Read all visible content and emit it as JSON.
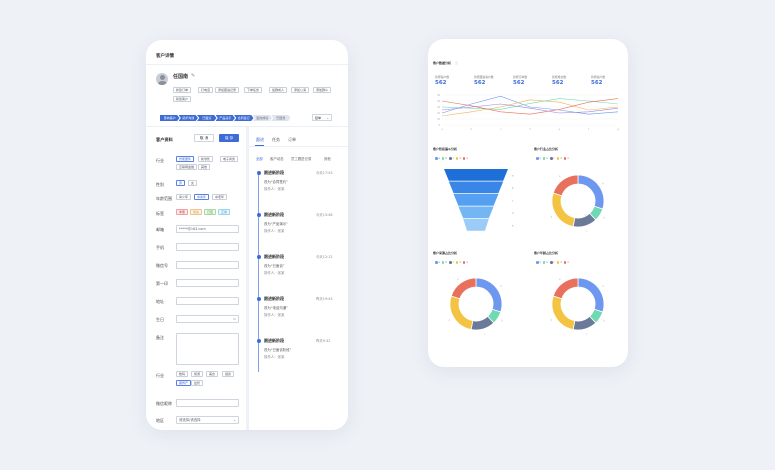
{
  "left": {
    "title": "客户详情",
    "customer": {
      "name": "任国南",
      "edit_icon": "edit-icon"
    },
    "action_tags": [
      "新建订单",
      "打电话",
      "添加跟进记录",
      "下单任务",
      "加群成人",
      "添加公海",
      "添加群众",
      "新建客户"
    ],
    "stages": [
      "意向客户",
      "初步沟通",
      "已面谈",
      "产品演示",
      "合同签订",
      "签约成功",
      "已回款"
    ],
    "stage_active_count": 5,
    "stage_select": "结单",
    "section_title": "客户资料",
    "cancel_label": "取 消",
    "save_label": "保 存",
    "fields": {
      "industry_label": "行业",
      "industry_tags": [
        "智能硬件",
        "新零售",
        "电子商务",
        "互联网金融",
        "其他"
      ],
      "gender_label": "性别",
      "gender_opts": [
        "男",
        "女"
      ],
      "age_label": "年龄范围",
      "age_opts": [
        "青少年",
        "中青年",
        "中老年"
      ],
      "tags_label": "标签",
      "tag_values": [
        "重要",
        "优先",
        "已回",
        "正常"
      ],
      "email_label": "邮箱",
      "email_value": "*****@163.com",
      "phone_label": "手机",
      "wechat_label": "微信号",
      "company_label": "第一印",
      "address_label": "地址",
      "birthday_label": "生日",
      "note_label": "备注",
      "hobby_label": "行业",
      "hobby_tags": [
        "数码",
        "旅游",
        "美食",
        "健身",
        "服饰产",
        "益智",
        "运动爱好",
        "其它"
      ],
      "id_label": "微信昵称",
      "region_label": "地区",
      "region_value": "请选择/请选择"
    },
    "tabs": [
      "跟进",
      "任务",
      "订单"
    ],
    "subtabs": [
      "全部",
      "客户动态",
      "员工跟进记录",
      "其他"
    ],
    "timeline": [
      {
        "title": "跟进新阶段",
        "time": "今天17:43",
        "text": "改为“合同签约”",
        "op": "操作人：张某"
      },
      {
        "title": "跟进新阶段",
        "time": "今天13:46",
        "text": "改为“产品演示”",
        "op": "操作人：张某"
      },
      {
        "title": "跟进新阶段",
        "time": "今天12:12",
        "text": "改为“已面谈”",
        "op": "操作人：张某"
      },
      {
        "title": "跟进新阶段",
        "time": "昨天19:43",
        "text": "改为“电话沟通”",
        "op": "操作人：张某"
      },
      {
        "title": "跟进新阶段",
        "time": "昨天9:32",
        "text": "改为“已面谈阶段”",
        "op": "操作人：张某"
      }
    ]
  },
  "right": {
    "title": "客户数据分析",
    "kpis": [
      {
        "label": "新增客户数",
        "value": "562"
      },
      {
        "label": "新增跟进客户数",
        "value": "562"
      },
      {
        "label": "新增订单数",
        "value": "562"
      },
      {
        "label": "新增成交数",
        "value": "562"
      },
      {
        "label": "新增客户数",
        "value": "562"
      }
    ],
    "panel_titles": [
      "客户阶段漏斗分析",
      "客户行业占比分析",
      "客户来源占比分析",
      "客户年龄占比分析"
    ],
    "legend_items": [
      "a",
      "b",
      "c",
      "d",
      "e"
    ]
  },
  "colors": {
    "accent": "#3e6bd6",
    "donut": [
      "#6e97f0",
      "#6fd9b3",
      "#6c7a99",
      "#f5c342",
      "#e8705c"
    ],
    "funnel": [
      "#1f6fd8",
      "#3a86e6",
      "#55a0f0",
      "#74b5f4",
      "#9bcbf7"
    ],
    "lines": [
      "#6e97f0",
      "#f5b253",
      "#6fd9b3",
      "#e8705c",
      "#9b85e0"
    ]
  },
  "chart_data": [
    {
      "type": "line",
      "title": "",
      "x": [
        "a",
        "b",
        "c",
        "d",
        "e",
        "f",
        "g"
      ],
      "series": [
        {
          "values": [
            20,
            35,
            48,
            30,
            25,
            18,
            22
          ]
        },
        {
          "values": [
            15,
            22,
            30,
            42,
            38,
            25,
            30
          ]
        },
        {
          "values": [
            30,
            28,
            26,
            36,
            44,
            40,
            35
          ]
        },
        {
          "values": [
            40,
            32,
            22,
            18,
            26,
            38,
            44
          ]
        },
        {
          "values": [
            25,
            30,
            35,
            28,
            20,
            22,
            28
          ]
        }
      ],
      "ylim": [
        0,
        50
      ]
    },
    {
      "type": "bar",
      "title": "客户阶段漏斗分析",
      "categories": [
        "a",
        "b",
        "c",
        "d",
        "e"
      ],
      "values": [
        100,
        85,
        70,
        55,
        40
      ]
    },
    {
      "type": "pie",
      "title": "客户行业占比分析",
      "values": [
        30,
        8,
        15,
        27,
        20
      ]
    },
    {
      "type": "pie",
      "title": "客户来源占比分析",
      "values": [
        30,
        8,
        15,
        27,
        20
      ]
    },
    {
      "type": "pie",
      "title": "客户年龄占比分析",
      "values": [
        30,
        8,
        15,
        27,
        20
      ]
    }
  ]
}
